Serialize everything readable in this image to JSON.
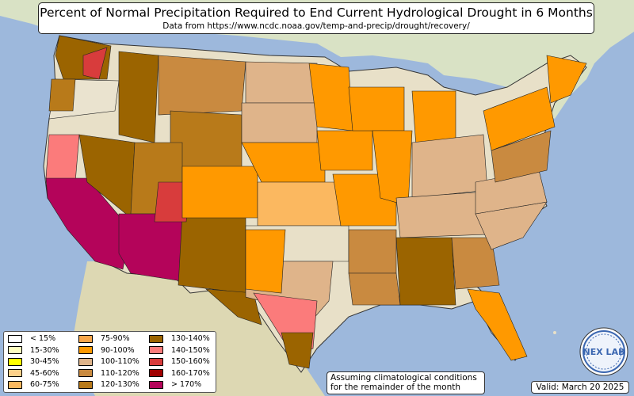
{
  "title": "Percent of Normal Precipitation Required to End Current Hydrological Drought in 6 Months",
  "subtitle": "Data from https://www.ncdc.noaa.gov/temp-and-precip/drought/recovery/",
  "note": {
    "line1": "Assuming climatological conditions",
    "line2": "for the remainder of the month"
  },
  "valid": "Valid: March 20 2025",
  "logo_text": "NEX LAB",
  "legend": [
    {
      "label": "< 15%",
      "color": "#ffffff"
    },
    {
      "label": "15-30%",
      "color": "#ffffc0"
    },
    {
      "label": "30-45%",
      "color": "#ffff00"
    },
    {
      "label": "45-60%",
      "color": "#fdd08a"
    },
    {
      "label": "60-75%",
      "color": "#fbb860"
    },
    {
      "label": "75-90%",
      "color": "#f8a64a"
    },
    {
      "label": "90-100%",
      "color": "#ff9900"
    },
    {
      "label": "100-110%",
      "color": "#dfb48a"
    },
    {
      "label": "110-120%",
      "color": "#c98a40"
    },
    {
      "label": "120-130%",
      "color": "#b87a1a"
    },
    {
      "label": "130-140%",
      "color": "#9b6400"
    },
    {
      "label": "140-150%",
      "color": "#fb7b7b"
    },
    {
      "label": "150-160%",
      "color": "#d83c3c"
    },
    {
      "label": "160-170%",
      "color": "#a00000"
    },
    {
      "label": "> 170%",
      "color": "#b4045a"
    }
  ]
}
